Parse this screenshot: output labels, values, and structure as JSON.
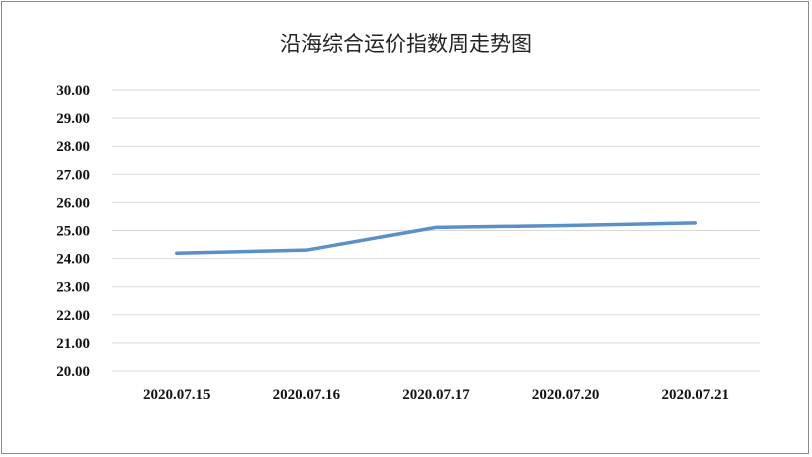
{
  "chart_data": {
    "type": "line",
    "title": "沿海综合运价指数周走势图",
    "categories": [
      "2020.07.15",
      "2020.07.16",
      "2020.07.17",
      "2020.07.20",
      "2020.07.21"
    ],
    "series": [
      {
        "values": [
          24.19,
          24.3,
          25.11,
          25.18,
          25.27
        ]
      }
    ],
    "y_ticks": [
      "20.00",
      "21.00",
      "22.00",
      "23.00",
      "24.00",
      "25.00",
      "26.00",
      "27.00",
      "28.00",
      "29.00",
      "30.00"
    ],
    "ylim": [
      20,
      30
    ],
    "grid": true,
    "line_color": "#5b8fc7"
  }
}
